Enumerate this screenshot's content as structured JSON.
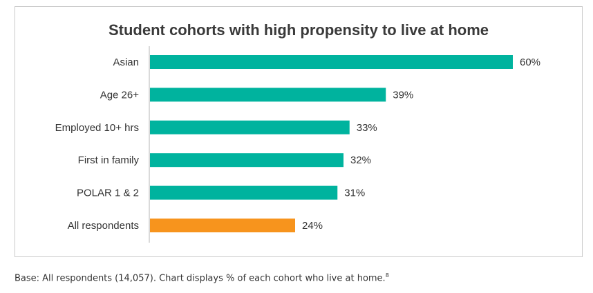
{
  "chart_data": {
    "type": "bar",
    "orientation": "horizontal",
    "title": "Student cohorts with high propensity to live at home",
    "xlabel": "",
    "ylabel": "",
    "xlim": [
      0,
      60
    ],
    "grid": false,
    "categories": [
      "Asian",
      "Age 26+",
      "Employed 10+ hrs",
      "First in family",
      "POLAR 1 & 2",
      "All respondents"
    ],
    "values": [
      60,
      39,
      33,
      32,
      31,
      24
    ],
    "data_labels": [
      "60%",
      "39%",
      "33%",
      "32%",
      "31%",
      "24%"
    ],
    "colors": [
      "#00b39e",
      "#00b39e",
      "#00b39e",
      "#00b39e",
      "#00b39e",
      "#f7941d"
    ]
  },
  "caption": {
    "text": "Base: All respondents (14,057). Chart displays % of each cohort who live at home.",
    "footnote": "8"
  }
}
